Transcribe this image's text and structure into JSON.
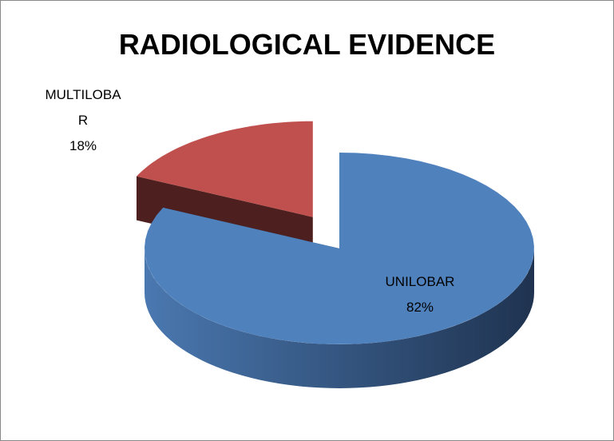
{
  "chart_data": {
    "type": "pie",
    "title": "RADIOLOGICAL EVIDENCE",
    "categories": [
      "UNILOBAR",
      "MULTILOBAR"
    ],
    "values": [
      82,
      18
    ],
    "value_labels": [
      "82%",
      "18%"
    ],
    "colors": [
      "#4f81bd",
      "#c0504d"
    ]
  }
}
